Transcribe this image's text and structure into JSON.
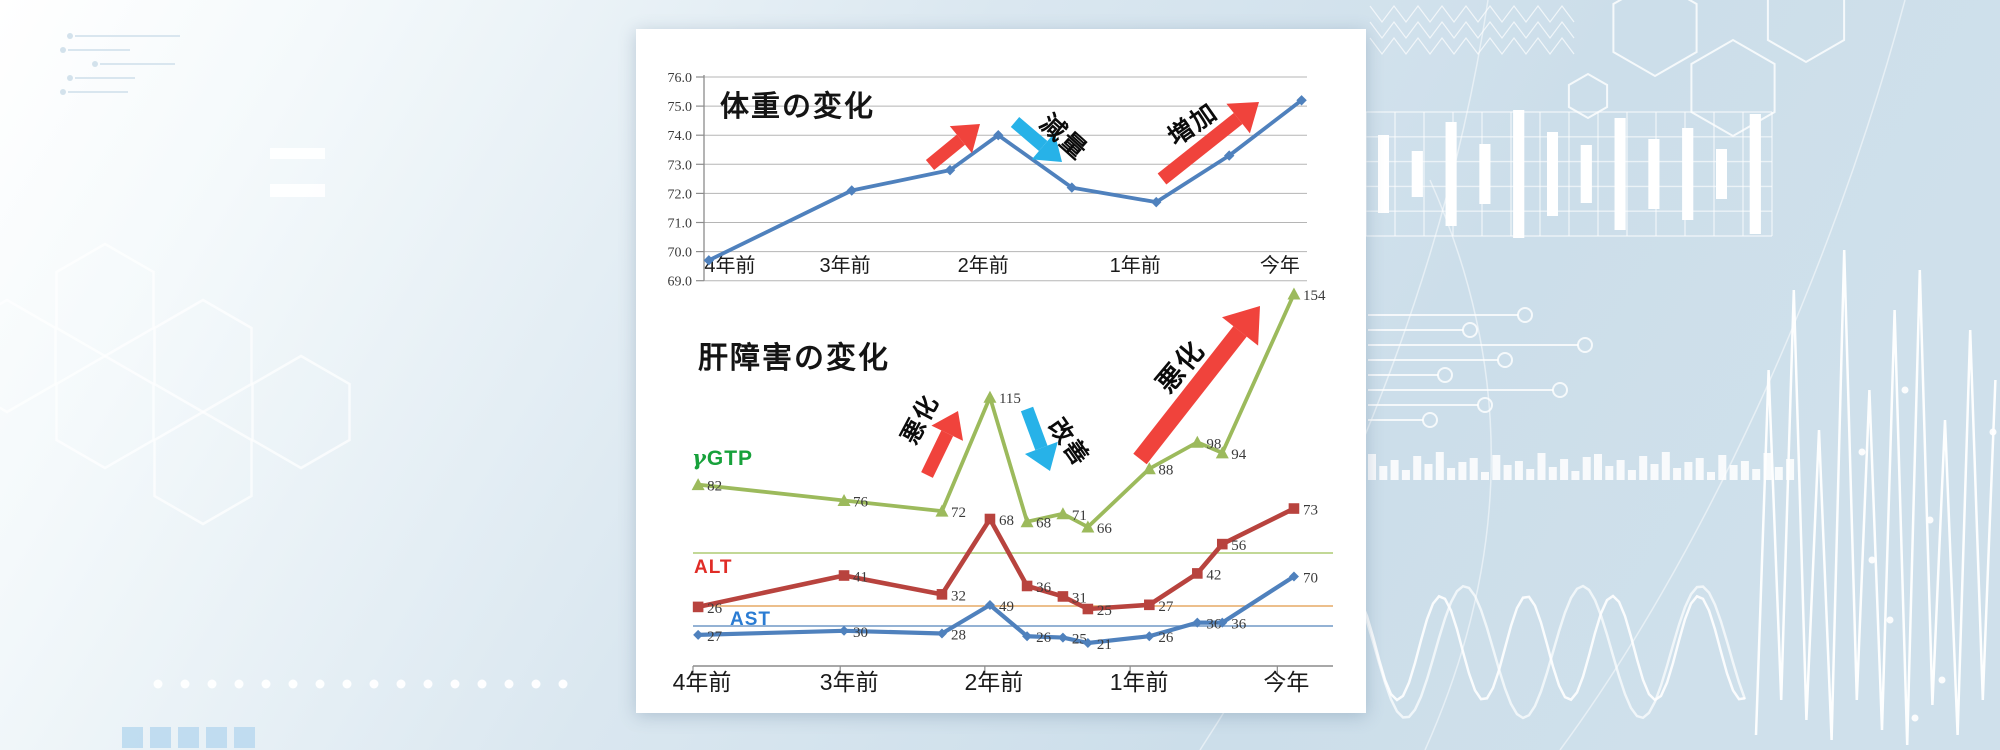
{
  "chart_data": [
    {
      "type": "line",
      "title": "体重の変化",
      "x_tick_labels": [
        "4年前",
        "3年前",
        "2年前",
        "1年前",
        "今年"
      ],
      "tick_positions": [
        0.043,
        0.234,
        0.463,
        0.715,
        0.955
      ],
      "y_ticks": [
        76,
        75,
        74,
        73,
        72,
        71,
        70,
        69
      ],
      "y_tick_decimals": 1,
      "ylim": [
        69.0,
        76.0
      ],
      "grid": true,
      "legend_position": "none",
      "x_positions": [
        0.008,
        0.245,
        0.408,
        0.488,
        0.61,
        0.75,
        0.871,
        0.991
      ],
      "series": [
        {
          "name": "weight",
          "color": "#4f81bd",
          "marker": "diamond",
          "values": [
            69.7,
            72.1,
            72.8,
            74.0,
            72.2,
            71.7,
            73.3,
            75.2
          ]
        }
      ],
      "annotations": [
        {
          "label": "",
          "shape": "arrow-up",
          "color": "#f0433c"
        },
        {
          "label": "減量",
          "shape": "arrow-down",
          "color": "#27b2e8"
        },
        {
          "label": "増加",
          "shape": "arrow-up",
          "color": "#f0433c"
        }
      ]
    },
    {
      "type": "line",
      "title": "肝障害の変化",
      "x_tick_labels": [
        "4年前",
        "3年前",
        "2年前",
        "1年前",
        "今年"
      ],
      "tick_positions": [
        0.0,
        0.23,
        0.456,
        0.683,
        0.913
      ],
      "grid": false,
      "data_labels": true,
      "legend_position": "left-inline",
      "x_positions": [
        0.008,
        0.236,
        0.389,
        0.464,
        0.522,
        0.578,
        0.617,
        0.713,
        0.788,
        0.827,
        0.939
      ],
      "series": [
        {
          "name": "γGTP",
          "color": "#9cba5c",
          "label_color": "#17a13b",
          "marker": "triangle",
          "values": [
            82,
            76,
            72,
            115,
            68,
            71,
            66,
            88,
            98,
            94,
            154
          ]
        },
        {
          "name": "ALT",
          "color": "#b8433e",
          "label_color": "#e02c26",
          "marker": "square",
          "values": [
            26,
            41,
            32,
            68,
            36,
            31,
            25,
            27,
            42,
            56,
            73
          ]
        },
        {
          "name": "AST",
          "color": "#4f81bd",
          "label_color": "#2b7cd3",
          "marker": "diamond",
          "values": [
            27,
            30,
            28,
            49,
            26,
            25,
            21,
            26,
            36,
            36,
            70
          ]
        }
      ],
      "reference_lines": [
        {
          "series": "γGTP",
          "color": "#a9c86d"
        },
        {
          "series": "ALT",
          "color": "#e5a55e"
        },
        {
          "series": "AST",
          "color": "#6a94c4"
        }
      ],
      "annotations": [
        {
          "label": "悪化",
          "shape": "arrow-up",
          "color": "#f0433c"
        },
        {
          "label": "改善",
          "shape": "arrow-down",
          "color": "#27b2e8"
        },
        {
          "label": "悪化",
          "shape": "arrow-up",
          "color": "#f0433c"
        }
      ]
    }
  ]
}
